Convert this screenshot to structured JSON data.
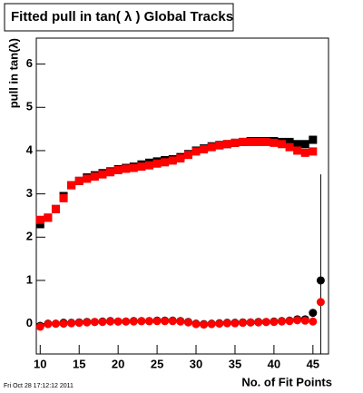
{
  "chart_data": {
    "type": "scatter",
    "title": "Fitted pull in tan( λ )  Global Tracks",
    "y_label": "pull in tan(λ)",
    "x_label": "No. of Fit Points",
    "footer": "Fri Oct 28 17:12:12 2011",
    "xlim": [
      9.5,
      47
    ],
    "ylim": [
      -0.7,
      6.6
    ],
    "xticks": [
      10,
      15,
      20,
      25,
      30,
      35,
      40,
      45
    ],
    "yticks": [
      0,
      1,
      2,
      3,
      4,
      5,
      6
    ],
    "series": [
      {
        "marker": "square",
        "color": "#000000",
        "x": [
          10,
          11,
          12,
          13,
          14,
          15,
          16,
          17,
          18,
          19,
          20,
          21,
          22,
          23,
          24,
          25,
          26,
          27,
          28,
          29,
          30,
          31,
          32,
          33,
          34,
          35,
          36,
          37,
          38,
          39,
          40,
          41,
          42,
          43,
          44,
          45
        ],
        "values": [
          2.3,
          2.45,
          2.65,
          2.95,
          3.2,
          3.3,
          3.38,
          3.43,
          3.48,
          3.52,
          3.57,
          3.6,
          3.63,
          3.68,
          3.72,
          3.75,
          3.78,
          3.8,
          3.85,
          3.92,
          4.0,
          4.05,
          4.1,
          4.13,
          4.15,
          4.18,
          4.2,
          4.22,
          4.22,
          4.22,
          4.22,
          4.2,
          4.2,
          4.15,
          4.15,
          4.25
        ]
      },
      {
        "marker": "square",
        "color": "#ff0000",
        "x": [
          10,
          11,
          12,
          13,
          14,
          15,
          16,
          17,
          18,
          19,
          20,
          21,
          22,
          23,
          24,
          25,
          26,
          27,
          28,
          29,
          30,
          31,
          32,
          33,
          34,
          35,
          36,
          37,
          38,
          39,
          40,
          41,
          42,
          43,
          44,
          45
        ],
        "values": [
          2.4,
          2.45,
          2.65,
          2.9,
          3.2,
          3.3,
          3.35,
          3.4,
          3.45,
          3.5,
          3.55,
          3.58,
          3.6,
          3.63,
          3.66,
          3.7,
          3.73,
          3.77,
          3.82,
          3.9,
          3.98,
          4.03,
          4.08,
          4.12,
          4.15,
          4.18,
          4.2,
          4.2,
          4.2,
          4.2,
          4.18,
          4.15,
          4.08,
          4.0,
          3.95,
          3.98
        ]
      },
      {
        "marker": "circle",
        "color": "#000000",
        "x": [
          10,
          11,
          12,
          13,
          14,
          15,
          16,
          17,
          18,
          19,
          20,
          21,
          22,
          23,
          24,
          25,
          26,
          27,
          28,
          29,
          30,
          31,
          32,
          33,
          34,
          35,
          36,
          37,
          38,
          39,
          40,
          41,
          42,
          43,
          44,
          45,
          46
        ],
        "values": [
          -0.05,
          0.0,
          0.0,
          0.02,
          0.02,
          0.03,
          0.04,
          0.04,
          0.05,
          0.06,
          0.05,
          0.05,
          0.06,
          0.06,
          0.06,
          0.07,
          0.07,
          0.07,
          0.06,
          0.04,
          0.0,
          -0.01,
          0.0,
          0.01,
          0.02,
          0.02,
          0.03,
          0.03,
          0.04,
          0.04,
          0.05,
          0.06,
          0.07,
          0.1,
          0.1,
          0.25,
          1.0
        ],
        "errors": [
          0,
          0,
          0,
          0,
          0,
          0,
          0,
          0,
          0,
          0,
          0,
          0,
          0,
          0,
          0,
          0,
          0,
          0,
          0,
          0,
          0,
          0,
          0,
          0,
          0,
          0,
          0,
          0,
          0,
          0,
          0,
          0,
          0,
          0,
          0,
          0,
          2.45
        ]
      },
      {
        "marker": "circle",
        "color": "#ff0000",
        "x": [
          10,
          11,
          12,
          13,
          14,
          15,
          16,
          17,
          18,
          19,
          20,
          21,
          22,
          23,
          24,
          25,
          26,
          27,
          28,
          29,
          30,
          31,
          32,
          33,
          34,
          35,
          36,
          37,
          38,
          39,
          40,
          41,
          42,
          43,
          44,
          45,
          46
        ],
        "values": [
          -0.07,
          -0.01,
          0.0,
          0.0,
          0.01,
          0.02,
          0.03,
          0.04,
          0.04,
          0.05,
          0.05,
          0.05,
          0.05,
          0.06,
          0.06,
          0.06,
          0.06,
          0.06,
          0.05,
          0.03,
          -0.01,
          -0.02,
          -0.01,
          0.0,
          0.01,
          0.01,
          0.02,
          0.03,
          0.03,
          0.04,
          0.04,
          0.05,
          0.06,
          0.08,
          0.07,
          0.05,
          0.5
        ]
      }
    ]
  }
}
